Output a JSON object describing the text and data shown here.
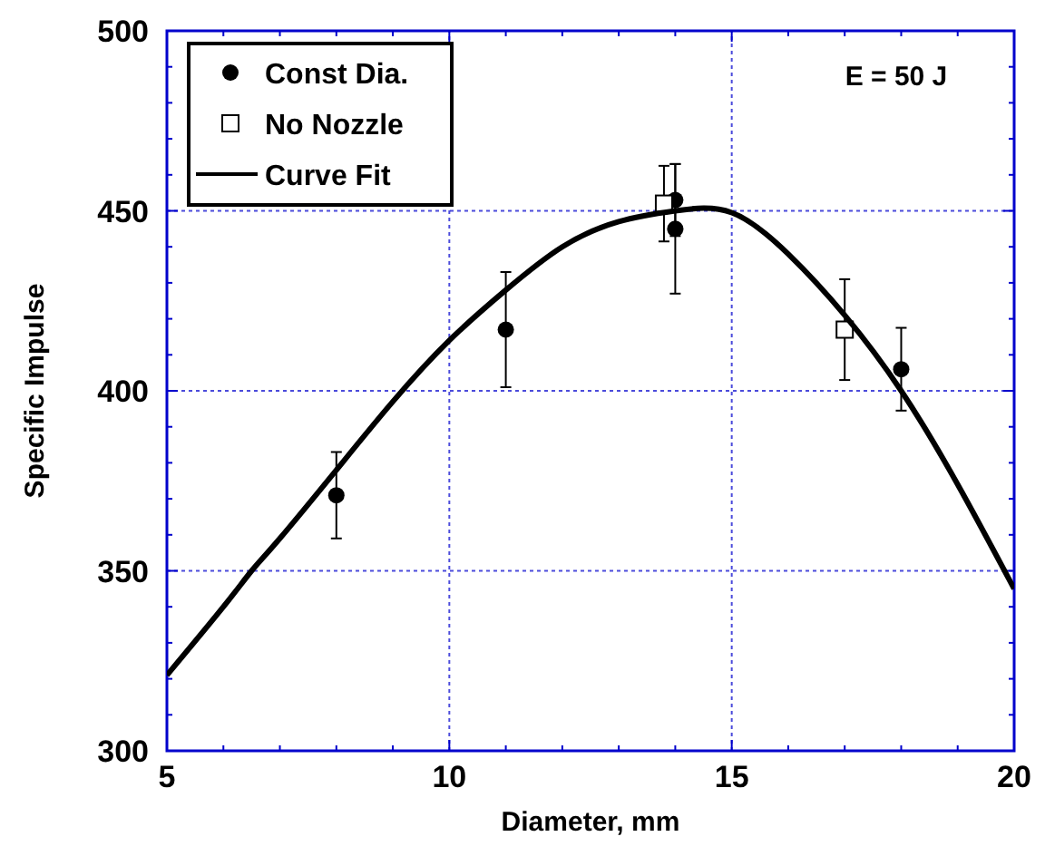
{
  "chart_data": {
    "type": "scatter",
    "xlabel": "Diameter, mm",
    "ylabel": "Specific Impulse",
    "xlim": [
      5,
      20
    ],
    "ylim": [
      300,
      500
    ],
    "xticks": [
      5,
      {
        "value": 6,
        "label": null
      },
      {
        "value": 7,
        "label": null
      },
      {
        "value": 8,
        "label": null
      },
      {
        "value": 9,
        "label": null
      },
      10,
      {
        "value": 11,
        "label": null
      },
      {
        "value": 12,
        "label": null
      },
      {
        "value": 13,
        "label": null
      },
      {
        "value": 14,
        "label": null
      },
      15,
      {
        "value": 16,
        "label": null
      },
      {
        "value": 17,
        "label": null
      },
      {
        "value": 18,
        "label": null
      },
      {
        "value": 19,
        "label": null
      },
      20
    ],
    "yticks": [
      300,
      {
        "value": 310,
        "label": null
      },
      {
        "value": 320,
        "label": null
      },
      {
        "value": 330,
        "label": null
      },
      {
        "value": 340,
        "label": null
      },
      350,
      {
        "value": 360,
        "label": null
      },
      {
        "value": 370,
        "label": null
      },
      {
        "value": 380,
        "label": null
      },
      {
        "value": 390,
        "label": null
      },
      400,
      {
        "value": 410,
        "label": null
      },
      {
        "value": 420,
        "label": null
      },
      {
        "value": 430,
        "label": null
      },
      {
        "value": 440,
        "label": null
      },
      450,
      {
        "value": 460,
        "label": null
      },
      {
        "value": 470,
        "label": null
      },
      {
        "value": 480,
        "label": null
      },
      {
        "value": 490,
        "label": null
      },
      500
    ],
    "grid": true,
    "legend": "top left",
    "annotations": [
      "E = 50 J"
    ],
    "series": [
      {
        "name": "Const Dia.",
        "type": "scatter",
        "marker": "circle",
        "color": "#000000",
        "x": [
          8,
          11,
          14,
          14,
          18
        ],
        "values": [
          371,
          417,
          453,
          445,
          406
        ],
        "errors": [
          12,
          16,
          10,
          18,
          11.5
        ]
      },
      {
        "name": "No Nozzle",
        "type": "scatter",
        "marker": "square",
        "color": "#000000",
        "x": [
          13.8,
          17
        ],
        "values": [
          452,
          417
        ],
        "errors": [
          10.5,
          14
        ]
      },
      {
        "name": "Curve Fit",
        "type": "line",
        "marker": "none",
        "line_style": "solid",
        "color": "#000000",
        "x": [
          5,
          6,
          6.5,
          7,
          8,
          9,
          10,
          11,
          12,
          13,
          14,
          15,
          16,
          17,
          18,
          19,
          20
        ],
        "values": [
          321,
          340,
          350,
          359,
          378,
          397,
          414,
          428,
          440,
          447,
          450,
          449.5,
          438,
          421,
          400,
          374,
          345
        ]
      }
    ]
  }
}
